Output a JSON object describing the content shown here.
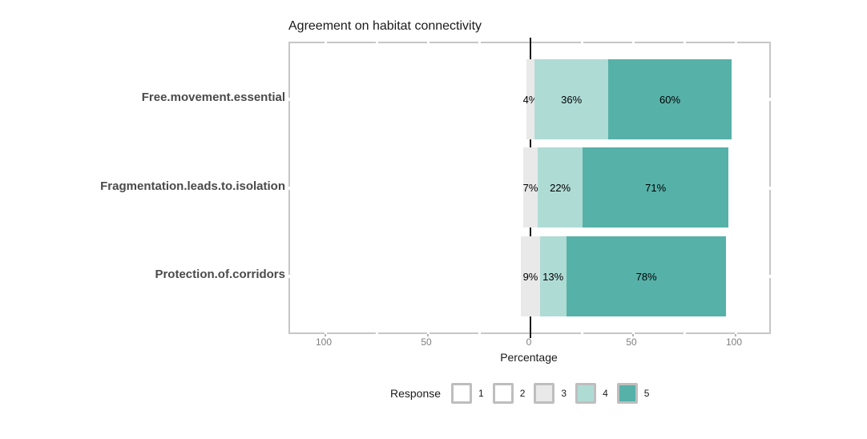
{
  "title": "Agreement on habitat connectivity",
  "x_axis": {
    "label": "Percentage",
    "tick_labels": [
      "100",
      "50",
      "0",
      "50",
      "100"
    ]
  },
  "legend": {
    "title": "Response",
    "items": [
      {
        "label": "1",
        "color": "#FFFFFF"
      },
      {
        "label": "2",
        "color": "#FFFFFF"
      },
      {
        "label": "3",
        "color": "#E9E9E9"
      },
      {
        "label": "4",
        "color": "#AFDBD5"
      },
      {
        "label": "5",
        "color": "#56B1A8"
      }
    ]
  },
  "rows": [
    {
      "label": "Free.movement.essential",
      "segments": [
        {
          "response": "3",
          "pct": 4,
          "text": "4%",
          "color": "#E9E9E9"
        },
        {
          "response": "4",
          "pct": 36,
          "text": "36%",
          "color": "#AFDBD5"
        },
        {
          "response": "5",
          "pct": 60,
          "text": "60%",
          "color": "#56B1A8"
        }
      ]
    },
    {
      "label": "Fragmentation.leads.to.isolation",
      "segments": [
        {
          "response": "3",
          "pct": 7,
          "text": "7%",
          "color": "#E9E9E9"
        },
        {
          "response": "4",
          "pct": 22,
          "text": "22%",
          "color": "#AFDBD5"
        },
        {
          "response": "5",
          "pct": 71,
          "text": "71%",
          "color": "#56B1A8"
        }
      ]
    },
    {
      "label": "Protection.of.corridors",
      "segments": [
        {
          "response": "3",
          "pct": 9,
          "text": "9%",
          "color": "#E9E9E9"
        },
        {
          "response": "4",
          "pct": 13,
          "text": "13%",
          "color": "#AFDBD5"
        },
        {
          "response": "5",
          "pct": 78,
          "text": "78%",
          "color": "#56B1A8"
        }
      ]
    }
  ],
  "chart_data": {
    "type": "bar",
    "subtype": "diverging stacked Likert bar chart, horizontal, neutral category centered on 0",
    "title": "Agreement on habitat connectivity",
    "xlabel": "Percentage",
    "ylabel": "",
    "x_tick_labels": [
      "100",
      "50",
      "0",
      "50",
      "100"
    ],
    "x_tick_values": [
      -100,
      -50,
      0,
      50,
      100
    ],
    "xlim": [
      -117,
      117
    ],
    "categories": [
      "Free.movement.essential",
      "Fragmentation.leads.to.isolation",
      "Protection.of.corridors"
    ],
    "series": [
      {
        "name": "1",
        "values": [
          0,
          0,
          0
        ],
        "color": "#FFFFFF"
      },
      {
        "name": "2",
        "values": [
          0,
          0,
          0
        ],
        "color": "#FFFFFF"
      },
      {
        "name": "3",
        "values": [
          4,
          7,
          9
        ],
        "color": "#E9E9E9"
      },
      {
        "name": "4",
        "values": [
          36,
          22,
          13
        ],
        "color": "#AFDBD5"
      },
      {
        "name": "5",
        "values": [
          60,
          71,
          78
        ],
        "color": "#56B1A8"
      }
    ],
    "data_labels": [
      [
        "4%",
        "36%",
        "60%"
      ],
      [
        "7%",
        "22%",
        "71%"
      ],
      [
        "9%",
        "13%",
        "78%"
      ]
    ],
    "legend_title": "Response",
    "legend_entries": [
      "1",
      "2",
      "3",
      "4",
      "5"
    ],
    "legend_position": "bottom",
    "zero_reference_line": true,
    "grid": "white gridlines on white panel (visible only as gaps in gray panel border)"
  },
  "colors": {
    "response_5_teal": "#56B1A8",
    "response_4_light_teal": "#AFDBD5",
    "response_3_gray": "#E9E9E9",
    "panel_border": "#C6C6C6",
    "tick_label_gray": "#7F7F7F",
    "category_label_gray": "#4A4A4A",
    "legend_key_border": "#BEBEBE",
    "zero_line": "#1A1A1A"
  }
}
